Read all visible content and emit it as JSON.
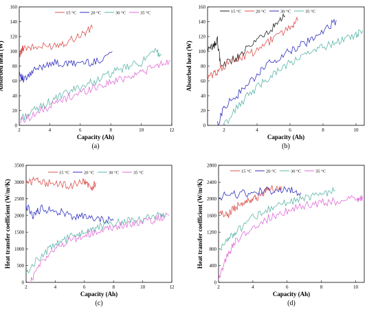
{
  "chart_data": [
    {
      "type": "line",
      "panel_label": "(a)",
      "xlabel": "Capacity (Ah)",
      "ylabel": "Absorbed heat (W)",
      "xlim": [
        2,
        12
      ],
      "ylim": [
        0,
        160
      ],
      "xticks": [
        2,
        4,
        6,
        8,
        10,
        12
      ],
      "yticks": [
        0,
        20,
        40,
        60,
        80,
        100,
        120,
        140,
        160
      ],
      "grid": false,
      "legend_position": "top",
      "series": [
        {
          "name": "15 °C",
          "color": "#d9534f",
          "x": [
            2.0,
            2.3,
            3.0,
            4.0,
            5.0,
            6.0,
            6.8
          ],
          "y": [
            95,
            106,
            105,
            107,
            112,
            122,
            131
          ]
        },
        {
          "name": "20 °C",
          "color": "#2e2ebd",
          "x": [
            2.0,
            2.3,
            3.0,
            4.0,
            5.0,
            6.0,
            7.0,
            8.1
          ],
          "y": [
            72,
            60,
            74,
            85,
            82,
            85,
            85,
            100
          ]
        },
        {
          "name": "30 °C",
          "color": "#5bb5a8",
          "x": [
            2.0,
            3.0,
            4.0,
            5.0,
            6.0,
            7.0,
            8.0,
            9.0,
            10.0,
            11.0,
            11.3
          ],
          "y": [
            8,
            20,
            32,
            42,
            52,
            60,
            70,
            78,
            85,
            100,
            95
          ]
        },
        {
          "name": "35 °C",
          "color": "#e06ad8",
          "x": [
            2.0,
            3.0,
            4.0,
            5.0,
            6.0,
            7.0,
            8.0,
            9.0,
            10.0,
            11.0,
            11.9
          ],
          "y": [
            5,
            15,
            26,
            36,
            44,
            52,
            58,
            65,
            72,
            80,
            88
          ]
        }
      ]
    },
    {
      "type": "line",
      "panel_label": "(b)",
      "xlabel": "Capacity (Ah)",
      "ylabel": "Absorbed heat (W)",
      "xlim": [
        1,
        10.5
      ],
      "ylim": [
        0,
        160
      ],
      "xticks": [
        2,
        4,
        6,
        8,
        10
      ],
      "yticks": [
        0,
        20,
        40,
        60,
        80,
        100,
        120,
        140,
        160
      ],
      "grid": false,
      "legend_position": "top",
      "series": [
        {
          "name": "15 °C",
          "color": "#222222",
          "x": [
            1.0,
            1.4,
            1.6,
            1.8,
            2.5,
            3.0,
            4.0,
            5.0,
            5.7
          ],
          "y": [
            100,
            108,
            115,
            80,
            88,
            95,
            115,
            132,
            148
          ]
        },
        {
          "name": "20 °C",
          "color": "#d9534f",
          "x": [
            1.0,
            1.5,
            2.0,
            3.0,
            4.0,
            5.0,
            6.0,
            6.5
          ],
          "y": [
            63,
            72,
            80,
            92,
            100,
            118,
            132,
            142
          ]
        },
        {
          "name": "30 °C",
          "color": "#2e2ebd",
          "x": [
            1.6,
            2.0,
            3.0,
            4.0,
            5.0,
            6.0,
            7.0,
            8.0,
            8.8
          ],
          "y": [
            0,
            25,
            45,
            68,
            88,
            100,
            112,
            125,
            142
          ]
        },
        {
          "name": "35 °C",
          "color": "#5bb5a8",
          "x": [
            2.0,
            3.0,
            4.0,
            5.0,
            6.0,
            7.0,
            8.0,
            9.0,
            10.0,
            10.4
          ],
          "y": [
            0,
            30,
            52,
            70,
            84,
            96,
            105,
            115,
            122,
            128
          ]
        }
      ]
    },
    {
      "type": "line",
      "panel_label": "(c)",
      "xlabel": "Capacity (Ah)",
      "ylabel": "Heat transfer coefficient (W/m²K)",
      "xlim": [
        2,
        12
      ],
      "ylim": [
        0,
        3500
      ],
      "xticks": [
        2,
        4,
        6,
        8,
        10,
        12
      ],
      "yticks": [
        0,
        500,
        1000,
        1500,
        2000,
        2500,
        3000,
        3500
      ],
      "grid": false,
      "legend_position": "top",
      "series": [
        {
          "name": "15 °C",
          "color": "#d9534f",
          "x": [
            2.0,
            2.5,
            3.0,
            4.0,
            5.0,
            6.0,
            6.5,
            6.8
          ],
          "y": [
            2950,
            3050,
            3000,
            2950,
            2900,
            3000,
            2850,
            2950
          ]
        },
        {
          "name": "20 °C",
          "color": "#2e2ebd",
          "x": [
            2.0,
            2.5,
            3.0,
            4.0,
            5.0,
            6.0,
            7.0,
            8.0
          ],
          "y": [
            2300,
            2000,
            2200,
            2150,
            2000,
            1950,
            1900,
            1850
          ]
        },
        {
          "name": "30 °C",
          "color": "#5bb5a8",
          "x": [
            2.0,
            3.0,
            4.0,
            5.0,
            6.0,
            7.0,
            8.0,
            9.0,
            10.0,
            11.0,
            11.5
          ],
          "y": [
            300,
            800,
            1100,
            1350,
            1500,
            1650,
            1750,
            1850,
            1900,
            2000,
            2000
          ]
        },
        {
          "name": "35 °C",
          "color": "#e06ad8",
          "x": [
            2.3,
            3.0,
            4.0,
            5.0,
            6.0,
            7.0,
            8.0,
            9.0,
            10.0,
            11.0,
            11.8
          ],
          "y": [
            0,
            600,
            1000,
            1250,
            1400,
            1550,
            1650,
            1750,
            1800,
            1900,
            2000
          ]
        }
      ]
    },
    {
      "type": "line",
      "panel_label": "(d)",
      "xlabel": "Capacity (Ah)",
      "ylabel": "Heat transfer coefficient (W/m²K)",
      "xlim": [
        2,
        10.5
      ],
      "ylim": [
        0,
        2800
      ],
      "xticks": [
        2,
        4,
        6,
        8,
        10
      ],
      "yticks": [
        0,
        400,
        800,
        1200,
        1600,
        2000,
        2400,
        2800
      ],
      "grid": false,
      "legend_position": "top",
      "series": [
        {
          "name": "15 °C",
          "color": "#d9534f",
          "x": [
            2.0,
            2.5,
            3.0,
            3.5,
            4.0,
            4.5,
            5.0,
            5.7
          ],
          "y": [
            1650,
            1600,
            1800,
            1900,
            2000,
            2100,
            2250,
            2300
          ]
        },
        {
          "name": "20 °C",
          "color": "#2e2ebd",
          "x": [
            2.0,
            3.0,
            4.0,
            5.0,
            6.0,
            6.8
          ],
          "y": [
            2050,
            2100,
            2150,
            2200,
            2200,
            2150
          ]
        },
        {
          "name": "30 °C",
          "color": "#5bb5a8",
          "x": [
            2.0,
            2.5,
            3.0,
            4.0,
            5.0,
            6.0,
            7.0,
            8.0,
            8.8
          ],
          "y": [
            800,
            1000,
            1200,
            1550,
            1750,
            1900,
            2000,
            2100,
            2200
          ]
        },
        {
          "name": "35 °C",
          "color": "#e06ad8",
          "x": [
            2.0,
            2.5,
            3.0,
            4.0,
            5.0,
            6.0,
            7.0,
            8.0,
            9.0,
            10.0,
            10.4
          ],
          "y": [
            100,
            600,
            1000,
            1350,
            1550,
            1700,
            1850,
            1900,
            1950,
            2000,
            2050
          ]
        }
      ]
    }
  ]
}
